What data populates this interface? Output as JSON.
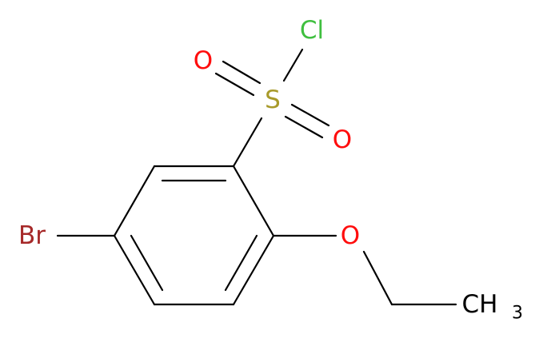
{
  "atoms": [
    {
      "label": "Cl"
    },
    {
      "label": "S"
    },
    {
      "label": "O"
    },
    {
      "label": "O"
    },
    {
      "label": "Br"
    },
    {
      "label": "O"
    },
    {
      "label": "CH",
      "subscript": "3"
    }
  ]
}
